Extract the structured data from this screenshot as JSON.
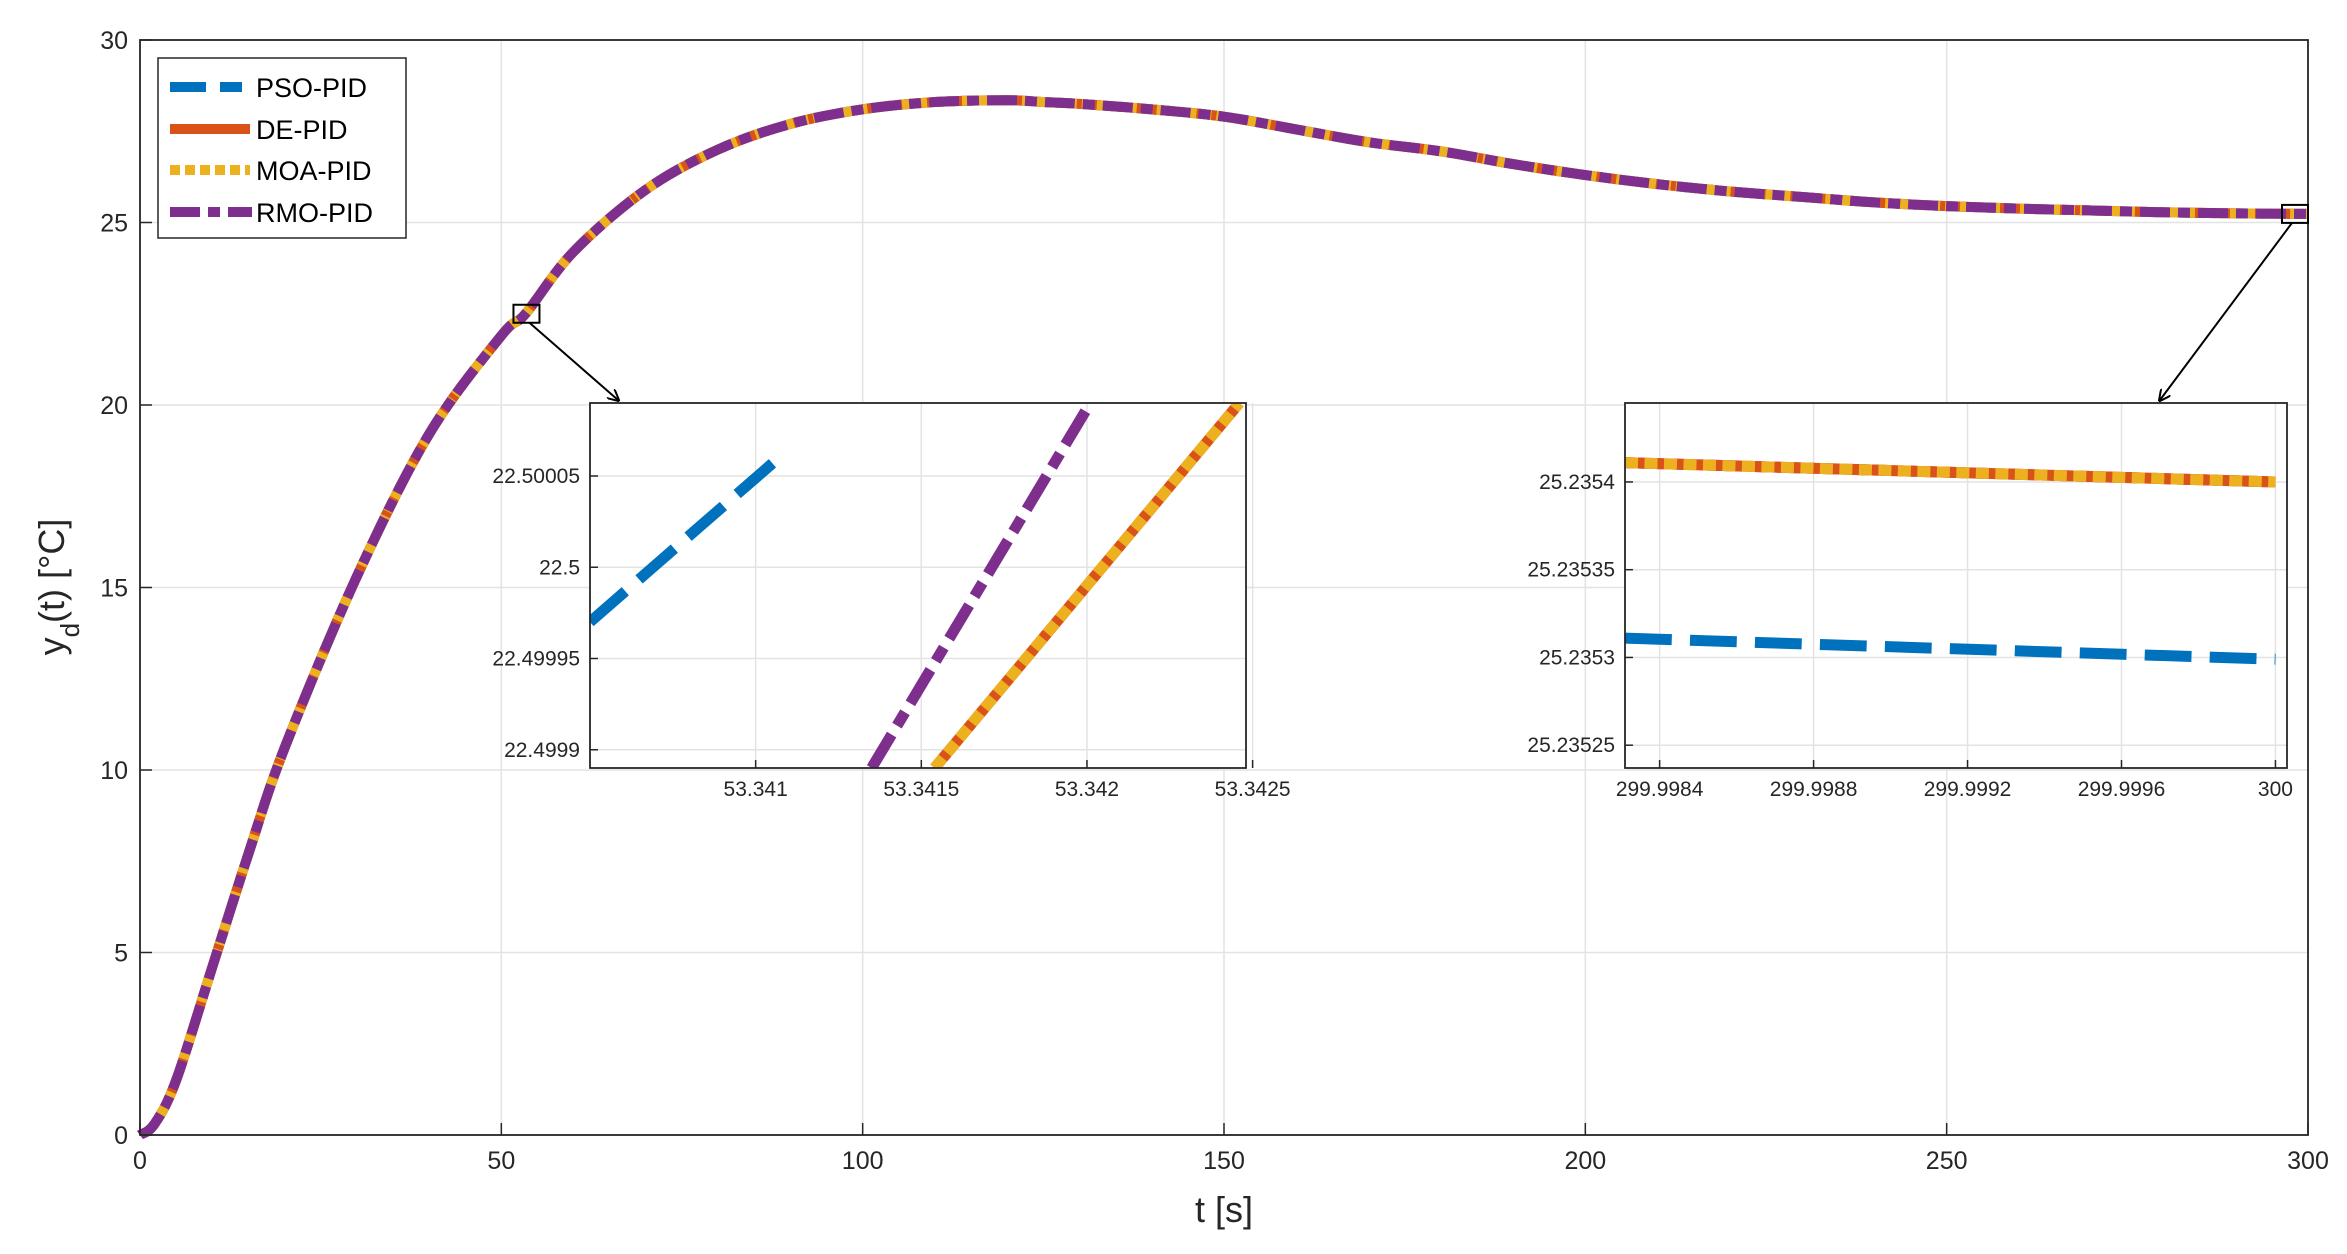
{
  "chart_data": [
    {
      "type": "line",
      "xlabel": "t [s]",
      "ylabel_main": "y",
      "ylabel_sub": "d",
      "ylabel_rest": "(t) [°C]",
      "xlim": [
        0,
        300
      ],
      "ylim": [
        0,
        30
      ],
      "xticks": [
        0,
        50,
        100,
        150,
        200,
        250,
        300
      ],
      "xtick_labels": [
        "0",
        "50",
        "100",
        "150",
        "200",
        "250",
        "300"
      ],
      "yticks": [
        0,
        5,
        10,
        15,
        20,
        25,
        30
      ],
      "ytick_labels": [
        "0",
        "5",
        "10",
        "15",
        "20",
        "25",
        "30"
      ],
      "grid": true,
      "legend_position": "top-left",
      "x": [
        0,
        2,
        5,
        10,
        15,
        20,
        30,
        40,
        50,
        53.34,
        60,
        70,
        80,
        90,
        100,
        110,
        120,
        125,
        130,
        140,
        150,
        160,
        170,
        180,
        190,
        200,
        210,
        220,
        230,
        240,
        250,
        260,
        270,
        280,
        290,
        300
      ],
      "series": [
        {
          "name": "PSO-PID",
          "color": "#0072BD",
          "style": "dashed-long",
          "y": [
            0,
            0.3,
            1.5,
            4.6,
            7.7,
            10.6,
            15.3,
            19.2,
            21.9,
            22.5,
            24.2,
            25.9,
            27.0,
            27.7,
            28.1,
            28.3,
            28.35,
            28.3,
            28.25,
            28.1,
            27.9,
            27.55,
            27.2,
            26.95,
            26.6,
            26.3,
            26.05,
            25.85,
            25.7,
            25.55,
            25.45,
            25.38,
            25.33,
            25.28,
            25.25,
            25.235
          ]
        },
        {
          "name": "DE-PID",
          "color": "#D95319",
          "style": "solid",
          "y": [
            0,
            0.3,
            1.5,
            4.6,
            7.7,
            10.6,
            15.3,
            19.2,
            21.9,
            22.5,
            24.2,
            25.9,
            27.0,
            27.7,
            28.1,
            28.3,
            28.35,
            28.3,
            28.25,
            28.1,
            27.9,
            27.55,
            27.2,
            26.95,
            26.6,
            26.3,
            26.05,
            25.85,
            25.7,
            25.55,
            25.45,
            25.38,
            25.33,
            25.28,
            25.25,
            25.235
          ]
        },
        {
          "name": "MOA-PID",
          "color": "#EDB120",
          "style": "dotted",
          "y": [
            0,
            0.3,
            1.5,
            4.6,
            7.7,
            10.6,
            15.3,
            19.2,
            21.9,
            22.5,
            24.2,
            25.9,
            27.0,
            27.7,
            28.1,
            28.3,
            28.35,
            28.3,
            28.25,
            28.1,
            27.9,
            27.55,
            27.2,
            26.95,
            26.6,
            26.3,
            26.05,
            25.85,
            25.7,
            25.55,
            25.45,
            25.38,
            25.33,
            25.28,
            25.25,
            25.235
          ]
        },
        {
          "name": "RMO-PID",
          "color": "#7E2F8E",
          "style": "dash-dot",
          "y": [
            0,
            0.3,
            1.5,
            4.6,
            7.7,
            10.6,
            15.3,
            19.2,
            21.9,
            22.5,
            24.2,
            25.9,
            27.0,
            27.7,
            28.1,
            28.3,
            28.35,
            28.3,
            28.25,
            28.1,
            27.9,
            27.55,
            27.2,
            26.95,
            26.6,
            26.3,
            26.05,
            25.85,
            25.7,
            25.55,
            25.45,
            25.38,
            25.33,
            25.28,
            25.25,
            25.235
          ]
        }
      ],
      "zoom_boxes": [
        {
          "x_center": 53.34,
          "y_center": 22.5
        },
        {
          "x_center": 299.9992,
          "y_center": 25.2353
        }
      ]
    },
    {
      "type": "line",
      "xlim": [
        53.3405,
        53.34248
      ],
      "ylim": [
        22.49989,
        22.50009
      ],
      "xticks": [
        53.341,
        53.3415,
        53.342,
        53.3425
      ],
      "xtick_labels": [
        "53.341",
        "53.3415",
        "53.342",
        "53.3425"
      ],
      "yticks": [
        22.4999,
        22.49995,
        22.5,
        22.50005
      ],
      "ytick_labels": [
        "22.4999",
        "22.49995",
        "22.5",
        "22.50005"
      ],
      "grid": true,
      "series": [
        {
          "name": "PSO-PID",
          "x": [
            53.3405,
            53.34107
          ],
          "y": [
            22.49997,
            22.50006
          ]
        },
        {
          "name": "RMO-PID",
          "x": [
            53.34135,
            53.34201
          ],
          "y": [
            22.49989,
            22.50009
          ]
        },
        {
          "name": "DE-PID",
          "x": [
            53.34154,
            53.34246
          ],
          "y": [
            22.49989,
            22.50009
          ]
        },
        {
          "name": "MOA-PID",
          "x": [
            53.34154,
            53.34246
          ],
          "y": [
            22.49989,
            22.50009
          ]
        }
      ]
    },
    {
      "type": "line",
      "xlim": [
        299.99831,
        300.00003
      ],
      "ylim": [
        25.235237,
        25.235445
      ],
      "xticks": [
        299.9984,
        299.9988,
        299.9992,
        299.9996,
        300
      ],
      "xtick_labels": [
        "299.9984",
        "299.9988",
        "299.9992",
        "299.9996",
        "300"
      ],
      "yticks": [
        25.23525,
        25.2353,
        25.23535,
        25.2354
      ],
      "ytick_labels": [
        "25.23525",
        "25.2353",
        "25.23535",
        "25.2354"
      ],
      "grid": true,
      "series": [
        {
          "name": "PSO-PID",
          "x": [
            299.99831,
            300.0
          ],
          "y": [
            25.235311,
            25.235299
          ]
        },
        {
          "name": "RMO-PID",
          "x": [
            299.99831,
            300.0
          ],
          "y": [
            25.235411,
            25.2354
          ]
        },
        {
          "name": "DE-PID",
          "x": [
            299.99831,
            300.0
          ],
          "y": [
            25.235411,
            25.2354
          ]
        },
        {
          "name": "MOA-PID",
          "x": [
            299.99831,
            300.0
          ],
          "y": [
            25.235411,
            25.2354
          ]
        }
      ]
    }
  ]
}
